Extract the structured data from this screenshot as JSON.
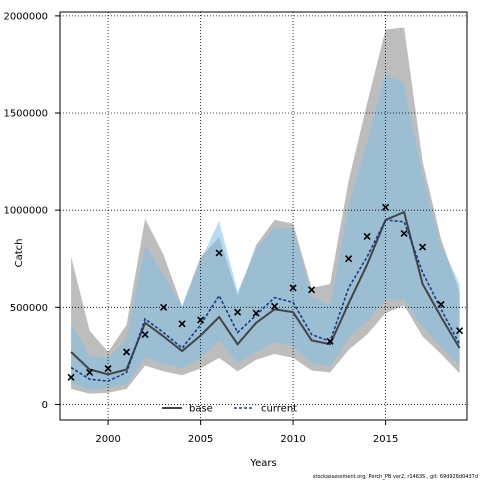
{
  "chart_data": {
    "type": "line",
    "title": "",
    "xlabel": "Years",
    "ylabel": "Catch",
    "xlim": [
      1997.4,
      2019.4
    ],
    "ylim": [
      -80000,
      2020000
    ],
    "x_ticks": [
      2000,
      2005,
      2010,
      2015
    ],
    "x_tick_labels": [
      "2000",
      "2005",
      "2010",
      "2015"
    ],
    "y_ticks": [
      0,
      500000,
      1000000,
      1500000,
      2000000
    ],
    "y_tick_labels": [
      "0",
      "500000",
      "1000000",
      "1500000",
      "2000000"
    ],
    "grid": true,
    "legend_placement": "bottom",
    "x": [
      1998,
      1999,
      2000,
      2001,
      2002,
      2003,
      2004,
      2005,
      2006,
      2007,
      2008,
      2009,
      2010,
      2011,
      2012,
      2013,
      2014,
      2015,
      2016,
      2017,
      2018,
      2019
    ],
    "series": [
      {
        "name": "base",
        "color": "#444444",
        "band_color": "#999999",
        "values": [
          270000,
          180000,
          155000,
          180000,
          420000,
          350000,
          275000,
          355000,
          450000,
          310000,
          420000,
          490000,
          475000,
          330000,
          310000,
          520000,
          720000,
          950000,
          990000,
          620000,
          450000,
          290000
        ],
        "lower": [
          80000,
          55000,
          60000,
          80000,
          200000,
          170000,
          150000,
          185000,
          240000,
          170000,
          230000,
          260000,
          240000,
          175000,
          165000,
          280000,
          360000,
          470000,
          510000,
          350000,
          260000,
          160000
        ],
        "upper": [
          760000,
          380000,
          270000,
          410000,
          955000,
          770000,
          505000,
          760000,
          860000,
          560000,
          820000,
          950000,
          930000,
          600000,
          620000,
          1150000,
          1550000,
          1930000,
          1940000,
          1250000,
          850000,
          580000
        ]
      },
      {
        "name": "current",
        "color": "#1a3a8a",
        "band_color": "#7fbfe6",
        "values": [
          190000,
          130000,
          120000,
          165000,
          440000,
          370000,
          290000,
          410000,
          560000,
          370000,
          460000,
          550000,
          525000,
          360000,
          325000,
          600000,
          760000,
          950000,
          940000,
          680000,
          490000,
          310000
        ],
        "lower": [
          110000,
          75000,
          85000,
          105000,
          240000,
          210000,
          185000,
          240000,
          330000,
          215000,
          270000,
          320000,
          300000,
          215000,
          195000,
          345000,
          430000,
          540000,
          540000,
          400000,
          295000,
          205000
        ],
        "upper": [
          420000,
          250000,
          240000,
          335000,
          820000,
          670000,
          505000,
          740000,
          945000,
          580000,
          800000,
          910000,
          905000,
          555000,
          510000,
          1020000,
          1350000,
          1700000,
          1650000,
          1180000,
          820000,
          620000
        ]
      }
    ],
    "observed": {
      "marker": "x",
      "values": [
        140000,
        165000,
        185000,
        270000,
        360000,
        500000,
        415000,
        435000,
        780000,
        475000,
        470000,
        505000,
        600000,
        590000,
        325000,
        750000,
        865000,
        1015000,
        880000,
        810000,
        515000,
        380000
      ]
    },
    "footnote": "stockassessment.org, Perch_PB ver2, r14635 , git: 69d926d0437d"
  }
}
